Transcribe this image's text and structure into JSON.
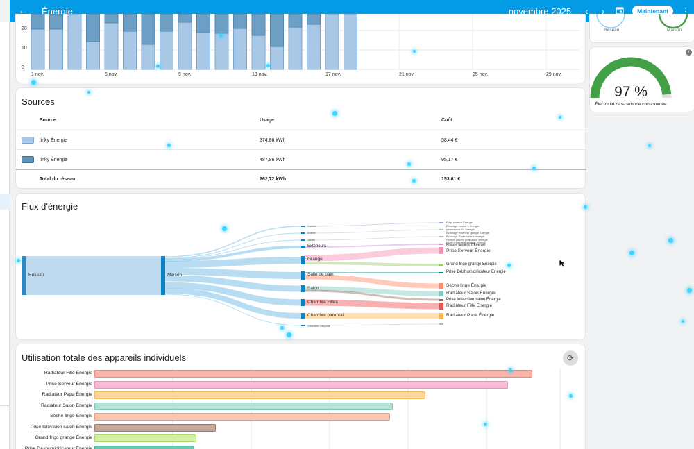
{
  "header": {
    "back_icon": "arrow-left-icon",
    "title": "Énergie",
    "period": "novembre 2025",
    "now_label": "Maintenant"
  },
  "energy_chart": {
    "y_ticks": [
      "20",
      "10",
      "0"
    ],
    "x_ticks": [
      "1 nov.",
      "5 nov.",
      "9 nov.",
      "13 nov.",
      "17 nov.",
      "21 nov.",
      "25 nov.",
      "29 nov."
    ]
  },
  "sources": {
    "title": "Sources",
    "columns": [
      "Source",
      "Usage",
      "Coût"
    ],
    "rows": [
      {
        "name": "linky Énergie",
        "usage": "374,86 kWh",
        "cost": "58,44 €",
        "color": "#a9c8e6"
      },
      {
        "name": "linky Énergie",
        "usage": "487,86 kWh",
        "cost": "95,17 €",
        "color": "#5f93b8"
      }
    ],
    "total": {
      "name": "Total du réseau",
      "usage": "862,72 kWh",
      "cost": "153,61 €"
    }
  },
  "flow": {
    "title": "Flux d'énergie",
    "nodes": {
      "grid": "Réseau",
      "home": "Maison",
      "cuisine": "Cuisine",
      "entree": "Entrée",
      "jardin": "Jardin",
      "exterieurs": "Extérieurs",
      "grange": "Grange",
      "sdb": "Salle de bain",
      "salon": "Salon",
      "chambre_filles": "Chambre Filles",
      "chambre_parental": "Chambre parental",
      "chambre_garcons": "Chambre Garçons"
    },
    "devices_small_top": [
      "Frigo maison Énergie",
      "Éclairage couloir 1 énergie",
      "pansement AU énergie",
      "Éclairage extérieur garage Énergie",
      "Éclairage Porte cuisine énergie",
      "Pompe piscine puissance énergie",
      "Porte d'entrée éclairage énergie",
      "Piscine lumière 2 Énergie"
    ],
    "devices_mid": [
      {
        "label": "Prise Serveur Énergie",
        "color": "#f48fb1"
      },
      {
        "label": "Grand frigo grange Énergie",
        "color": "#9ccc65"
      },
      {
        "label": "Prise Déshumidificateur Énergie",
        "color": "#009688"
      },
      {
        "label": "Sèche linge Énergie",
        "color": "#ff8a65"
      },
      {
        "label": "Radiateur Salon Énergie",
        "color": "#80cbc4"
      },
      {
        "label": "Prise television salon Énergie",
        "color": "#8d6e63"
      },
      {
        "label": "Radiateur Fille Énergie",
        "color": "#ef5350"
      },
      {
        "label": "Radiateur Papa Énergie",
        "color": "#ffb74d"
      }
    ]
  },
  "usage": {
    "title": "Utilisation totale des appareils individuels",
    "refresh_icon": "refresh-icon",
    "bars": [
      {
        "label": "Radiateur Fille Énergie",
        "value": 100,
        "color": "#f8b4a8",
        "border": "#ef8a7a"
      },
      {
        "label": "Prise Serveur Énergie",
        "value": 94.5,
        "color": "#f8bcd6",
        "border": "#f08cb8"
      },
      {
        "label": "Radiateur Papa Énergie",
        "value": 75.6,
        "color": "#fbd89c",
        "border": "#f5b95c"
      },
      {
        "label": "Radiateur Salon Énergie",
        "value": 68.1,
        "color": "#b6e0d6",
        "border": "#80c8b8"
      },
      {
        "label": "Sèche linge Énergie",
        "value": 67.5,
        "color": "#fbc6b0",
        "border": "#f59a78"
      },
      {
        "label": "Prise television salon Énergie",
        "value": 27.8,
        "color": "#c8a89c",
        "border": "#a07868"
      },
      {
        "label": "Grand frigo grange Énergie",
        "value": 23.3,
        "color": "#d6f0a8",
        "border": "#a8d86a"
      },
      {
        "label": "Prise Déshumidificateur Énergie",
        "value": 22.9,
        "color": "#6fc6b0",
        "border": "#3ea88c"
      }
    ]
  },
  "right": {
    "reseau": "Réseau",
    "maison": "Maison",
    "gauge_value": "97 %",
    "gauge_fraction": 0.97,
    "gauge_caption": "Électricité bas-carbone consommée",
    "gauge_color": "#43a047"
  }
}
